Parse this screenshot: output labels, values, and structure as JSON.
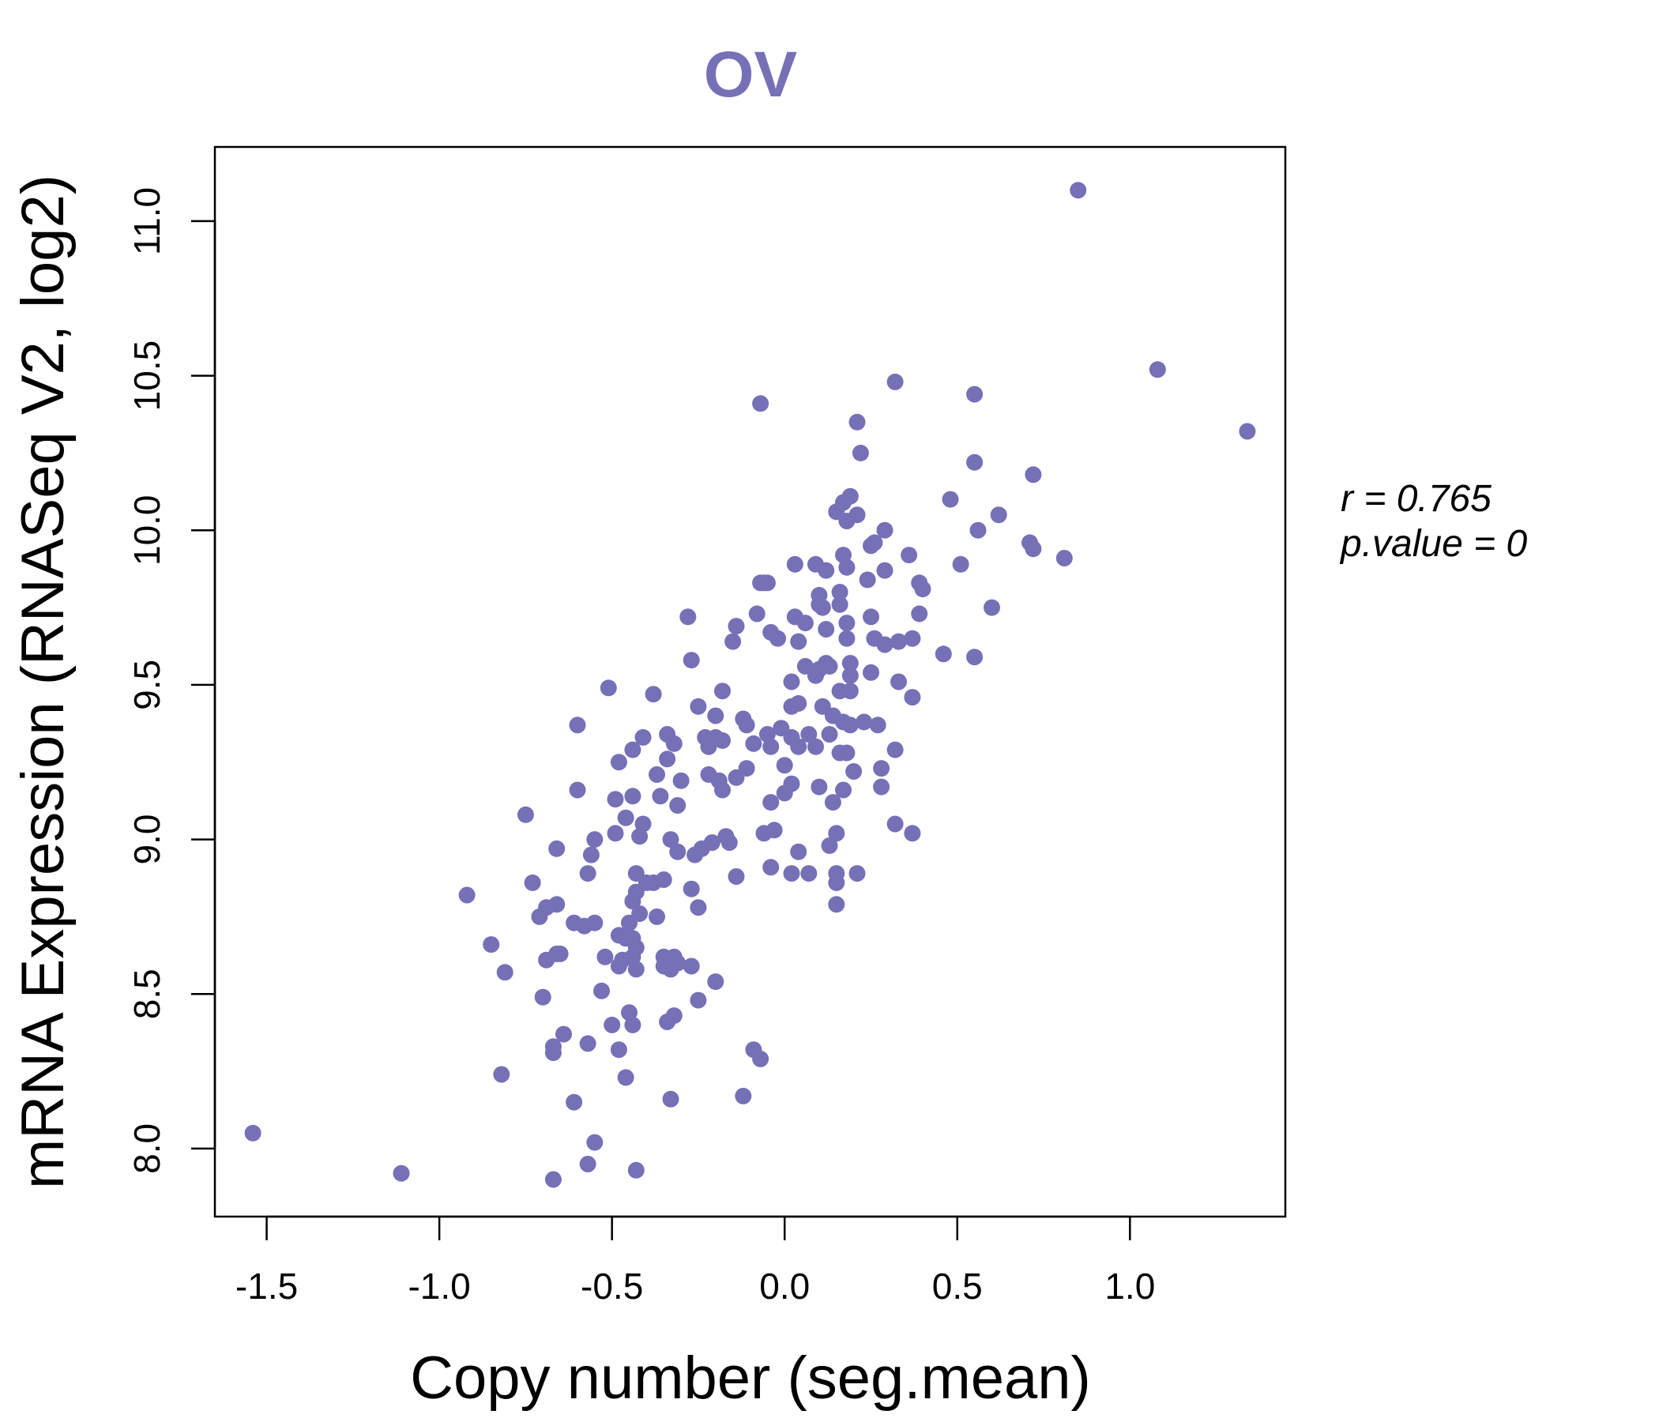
{
  "chart_data": {
    "type": "scatter",
    "title": "OV",
    "xlabel": "Copy number (seg.mean)",
    "ylabel": "mRNA Expression (RNASeq V2, log2)",
    "xlim": [
      -1.65,
      1.45
    ],
    "ylim": [
      7.78,
      11.24
    ],
    "xticks": [
      -1.5,
      -1.0,
      -0.5,
      0.0,
      0.5,
      1.0
    ],
    "xtick_labels": [
      "-1.5",
      "-1.0",
      "-0.5",
      "0.0",
      "0.5",
      "1.0"
    ],
    "yticks": [
      8.0,
      8.5,
      9.0,
      9.5,
      10.0,
      10.5,
      11.0
    ],
    "ytick_labels": [
      "8.0",
      "8.5",
      "9.0",
      "9.5",
      "10.0",
      "10.5",
      "11.0"
    ],
    "grid": false,
    "annotations": {
      "r_label": "r = 0.765",
      "p_label": "p.value = 0"
    },
    "colors": {
      "point": "#7670B6",
      "title": "#7670B6",
      "axis": "#000000"
    },
    "points": [
      [
        0.85,
        11.1
      ],
      [
        1.08,
        10.52
      ],
      [
        1.34,
        10.32
      ],
      [
        0.32,
        10.48
      ],
      [
        0.55,
        10.44
      ],
      [
        -0.07,
        10.41
      ],
      [
        0.21,
        10.35
      ],
      [
        0.22,
        10.25
      ],
      [
        0.55,
        10.22
      ],
      [
        0.72,
        10.18
      ],
      [
        0.48,
        10.1
      ],
      [
        0.62,
        10.05
      ],
      [
        0.19,
        10.11
      ],
      [
        0.17,
        10.09
      ],
      [
        0.15,
        10.06
      ],
      [
        0.18,
        10.03
      ],
      [
        0.21,
        10.05
      ],
      [
        0.29,
        10.0
      ],
      [
        0.56,
        10.0
      ],
      [
        0.71,
        9.96
      ],
      [
        0.72,
        9.94
      ],
      [
        0.81,
        9.91
      ],
      [
        0.51,
        9.89
      ],
      [
        0.36,
        9.92
      ],
      [
        0.25,
        9.95
      ],
      [
        0.26,
        9.96
      ],
      [
        0.17,
        9.92
      ],
      [
        0.18,
        9.88
      ],
      [
        0.09,
        9.89
      ],
      [
        0.12,
        9.87
      ],
      [
        0.03,
        9.89
      ],
      [
        -0.07,
        9.83
      ],
      [
        -0.06,
        9.83
      ],
      [
        -0.05,
        9.83
      ],
      [
        0.24,
        9.84
      ],
      [
        0.29,
        9.87
      ],
      [
        0.39,
        9.83
      ],
      [
        0.4,
        9.81
      ],
      [
        0.1,
        9.79
      ],
      [
        0.16,
        9.8
      ],
      [
        0.16,
        9.76
      ],
      [
        0.1,
        9.76
      ],
      [
        0.11,
        9.75
      ],
      [
        0.6,
        9.75
      ],
      [
        -0.28,
        9.72
      ],
      [
        -0.14,
        9.69
      ],
      [
        -0.08,
        9.73
      ],
      [
        0.03,
        9.72
      ],
      [
        0.06,
        9.7
      ],
      [
        0.12,
        9.68
      ],
      [
        0.18,
        9.7
      ],
      [
        0.25,
        9.72
      ],
      [
        0.39,
        9.73
      ],
      [
        -0.04,
        9.67
      ],
      [
        -0.02,
        9.65
      ],
      [
        0.04,
        9.64
      ],
      [
        0.18,
        9.65
      ],
      [
        0.26,
        9.65
      ],
      [
        0.29,
        9.63
      ],
      [
        0.33,
        9.64
      ],
      [
        0.37,
        9.65
      ],
      [
        0.46,
        9.6
      ],
      [
        0.55,
        9.59
      ],
      [
        -0.15,
        9.64
      ],
      [
        -0.27,
        9.58
      ],
      [
        0.06,
        9.56
      ],
      [
        0.1,
        9.55
      ],
      [
        0.12,
        9.57
      ],
      [
        0.13,
        9.56
      ],
      [
        0.19,
        9.57
      ],
      [
        0.25,
        9.54
      ],
      [
        0.09,
        9.53
      ],
      [
        0.19,
        9.53
      ],
      [
        0.02,
        9.51
      ],
      [
        0.33,
        9.51
      ],
      [
        0.16,
        9.48
      ],
      [
        0.19,
        9.48
      ],
      [
        0.37,
        9.46
      ],
      [
        -0.51,
        9.49
      ],
      [
        -0.38,
        9.47
      ],
      [
        -0.18,
        9.48
      ],
      [
        -0.25,
        9.43
      ],
      [
        -0.2,
        9.4
      ],
      [
        -0.12,
        9.39
      ],
      [
        -0.11,
        9.37
      ],
      [
        -0.05,
        9.34
      ],
      [
        0.02,
        9.43
      ],
      [
        0.04,
        9.44
      ],
      [
        0.11,
        9.43
      ],
      [
        0.14,
        9.4
      ],
      [
        0.17,
        9.38
      ],
      [
        0.19,
        9.37
      ],
      [
        0.23,
        9.38
      ],
      [
        0.27,
        9.37
      ],
      [
        -0.6,
        9.37
      ],
      [
        -0.41,
        9.33
      ],
      [
        -0.34,
        9.34
      ],
      [
        -0.32,
        9.31
      ],
      [
        -0.23,
        9.33
      ],
      [
        -0.22,
        9.3
      ],
      [
        -0.2,
        9.33
      ],
      [
        -0.18,
        9.32
      ],
      [
        -0.09,
        9.31
      ],
      [
        -0.04,
        9.3
      ],
      [
        -0.01,
        9.36
      ],
      [
        0.02,
        9.33
      ],
      [
        0.04,
        9.3
      ],
      [
        0.07,
        9.34
      ],
      [
        0.09,
        9.3
      ],
      [
        0.13,
        9.34
      ],
      [
        0.16,
        9.28
      ],
      [
        0.18,
        9.28
      ],
      [
        0.32,
        9.29
      ],
      [
        -0.48,
        9.25
      ],
      [
        -0.44,
        9.29
      ],
      [
        -0.34,
        9.26
      ],
      [
        -0.37,
        9.21
      ],
      [
        -0.3,
        9.19
      ],
      [
        -0.22,
        9.21
      ],
      [
        -0.19,
        9.19
      ],
      [
        -0.14,
        9.2
      ],
      [
        -0.11,
        9.23
      ],
      [
        0.0,
        9.24
      ],
      [
        0.02,
        9.18
      ],
      [
        0.1,
        9.17
      ],
      [
        0.17,
        9.16
      ],
      [
        0.2,
        9.22
      ],
      [
        0.28,
        9.23
      ],
      [
        0.28,
        9.17
      ],
      [
        -0.6,
        9.16
      ],
      [
        -0.44,
        9.14
      ],
      [
        -0.49,
        9.13
      ],
      [
        -0.36,
        9.14
      ],
      [
        -0.31,
        9.11
      ],
      [
        -0.18,
        9.16
      ],
      [
        -0.04,
        9.12
      ],
      [
        0.0,
        9.15
      ],
      [
        0.14,
        9.12
      ],
      [
        -0.75,
        9.08
      ],
      [
        -0.46,
        9.07
      ],
      [
        -0.41,
        9.05
      ],
      [
        -0.49,
        9.02
      ],
      [
        -0.42,
        9.01
      ],
      [
        -0.55,
        9.0
      ],
      [
        -0.33,
        9.0
      ],
      [
        -0.17,
        9.01
      ],
      [
        -0.16,
        8.99
      ],
      [
        -0.21,
        8.99
      ],
      [
        -0.24,
        8.97
      ],
      [
        -0.26,
        8.95
      ],
      [
        -0.31,
        8.96
      ],
      [
        -0.06,
        9.02
      ],
      [
        -0.03,
        9.03
      ],
      [
        0.15,
        9.02
      ],
      [
        0.32,
        9.05
      ],
      [
        0.37,
        9.02
      ],
      [
        0.04,
        8.96
      ],
      [
        0.13,
        8.98
      ],
      [
        -0.66,
        8.97
      ],
      [
        -0.56,
        8.95
      ],
      [
        -0.57,
        8.89
      ],
      [
        -0.43,
        8.89
      ],
      [
        -0.4,
        8.86
      ],
      [
        -0.35,
        8.87
      ],
      [
        -0.38,
        8.86
      ],
      [
        -0.27,
        8.84
      ],
      [
        -0.14,
        8.88
      ],
      [
        -0.04,
        8.91
      ],
      [
        0.02,
        8.89
      ],
      [
        0.07,
        8.89
      ],
      [
        0.15,
        8.89
      ],
      [
        0.15,
        8.86
      ],
      [
        0.21,
        8.89
      ],
      [
        -0.92,
        8.82
      ],
      [
        -0.73,
        8.86
      ],
      [
        -0.43,
        8.83
      ],
      [
        -0.44,
        8.8
      ],
      [
        -0.66,
        8.79
      ],
      [
        -0.69,
        8.78
      ],
      [
        -0.71,
        8.75
      ],
      [
        -0.25,
        8.78
      ],
      [
        0.15,
        8.79
      ],
      [
        -0.61,
        8.73
      ],
      [
        -0.58,
        8.72
      ],
      [
        -0.55,
        8.73
      ],
      [
        -0.45,
        8.73
      ],
      [
        -0.42,
        8.76
      ],
      [
        -0.37,
        8.75
      ],
      [
        -0.46,
        8.68
      ],
      [
        -0.44,
        8.68
      ],
      [
        -0.48,
        8.69
      ],
      [
        -0.43,
        8.65
      ],
      [
        -0.85,
        8.66
      ],
      [
        -0.66,
        8.63
      ],
      [
        -0.69,
        8.61
      ],
      [
        -0.65,
        8.63
      ],
      [
        -0.52,
        8.62
      ],
      [
        -0.47,
        8.61
      ],
      [
        -0.44,
        8.62
      ],
      [
        -0.35,
        8.62
      ],
      [
        -0.35,
        8.59
      ],
      [
        -0.33,
        8.58
      ],
      [
        -0.32,
        8.62
      ],
      [
        -0.31,
        8.6
      ],
      [
        -0.27,
        8.59
      ],
      [
        -0.48,
        8.59
      ],
      [
        -0.43,
        8.58
      ],
      [
        -0.81,
        8.57
      ],
      [
        -0.2,
        8.54
      ],
      [
        -0.53,
        8.51
      ],
      [
        -0.7,
        8.49
      ],
      [
        -0.25,
        8.48
      ],
      [
        -0.45,
        8.44
      ],
      [
        -0.32,
        8.43
      ],
      [
        -0.5,
        8.4
      ],
      [
        -0.44,
        8.4
      ],
      [
        -0.34,
        8.41
      ],
      [
        -0.64,
        8.37
      ],
      [
        -0.57,
        8.34
      ],
      [
        -0.48,
        8.32
      ],
      [
        -0.67,
        8.33
      ],
      [
        -0.67,
        8.31
      ],
      [
        -0.09,
        8.32
      ],
      [
        -0.07,
        8.29
      ],
      [
        -0.82,
        8.24
      ],
      [
        -0.46,
        8.23
      ],
      [
        -0.33,
        8.16
      ],
      [
        -0.61,
        8.15
      ],
      [
        -0.12,
        8.17
      ],
      [
        -1.54,
        8.05
      ],
      [
        -0.55,
        8.02
      ],
      [
        -1.11,
        7.92
      ],
      [
        -0.67,
        7.9
      ],
      [
        -0.57,
        7.95
      ],
      [
        -0.43,
        7.93
      ]
    ]
  }
}
